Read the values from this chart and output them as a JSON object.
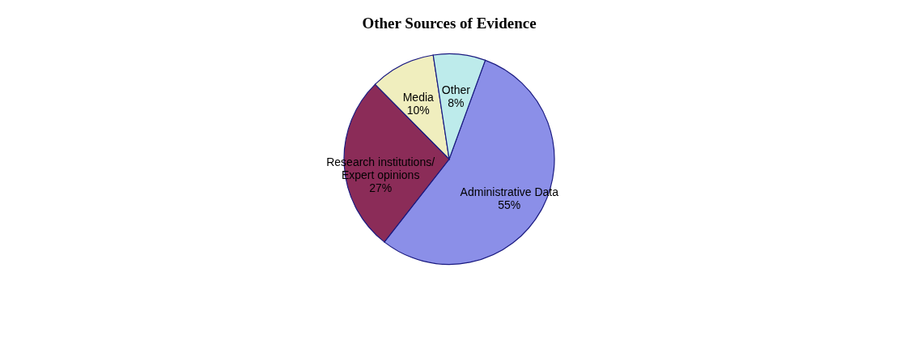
{
  "chart_data": {
    "type": "pie",
    "title": "Other Sources of Evidence",
    "categories": [
      "Administrative Data",
      "Research institutions/\nExpert opinions",
      "Media",
      "Other"
    ],
    "values": [
      55,
      27,
      10,
      8
    ],
    "value_labels": [
      "55%",
      "27%",
      "10%",
      "8%"
    ],
    "colors": [
      "#8b8fe8",
      "#8b2c58",
      "#f0eebe",
      "#bdebeb"
    ],
    "legend": false
  }
}
